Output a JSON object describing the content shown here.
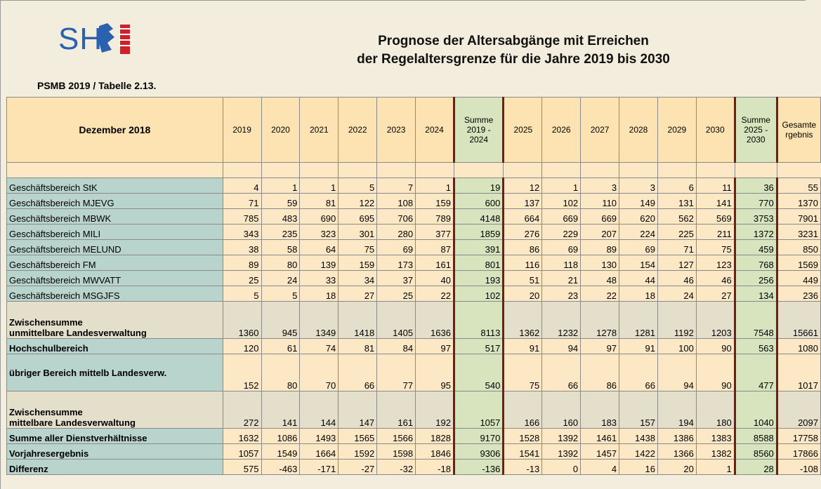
{
  "header": {
    "logo_text": "SH",
    "title_line1": "Prognose der Altersabgänge mit Erreichen",
    "title_line2": "der Regelaltersgrenze für die Jahre 2019 bis 2030",
    "subtitle": "PSMB 2019 / Tabelle 2.13."
  },
  "table": {
    "corner": "Dezember 2018",
    "columns": [
      "2019",
      "2020",
      "2021",
      "2022",
      "2023",
      "2024",
      "Summe\n2019 -\n2024",
      "2025",
      "2026",
      "2027",
      "2028",
      "2029",
      "2030",
      "Summe\n2025 -\n2030",
      "Gesamte\nrgebnis"
    ],
    "rows": [
      {
        "label": "Geschäftsbereich StK",
        "values": [
          4,
          1,
          1,
          5,
          7,
          1,
          19,
          12,
          1,
          3,
          3,
          6,
          11,
          36,
          55
        ]
      },
      {
        "label": "Geschäftsbereich MJEVG",
        "values": [
          71,
          59,
          81,
          122,
          108,
          159,
          600,
          137,
          102,
          110,
          149,
          131,
          141,
          770,
          1370
        ]
      },
      {
        "label": "Geschäftsbereich MBWK",
        "values": [
          785,
          483,
          690,
          695,
          706,
          789,
          4148,
          664,
          669,
          669,
          620,
          562,
          569,
          3753,
          7901
        ]
      },
      {
        "label": "Geschäftsbereich MILI",
        "values": [
          343,
          235,
          323,
          301,
          280,
          377,
          1859,
          276,
          229,
          207,
          224,
          225,
          211,
          1372,
          3231
        ]
      },
      {
        "label": "Geschäftsbereich MELUND",
        "values": [
          38,
          58,
          64,
          75,
          69,
          87,
          391,
          86,
          69,
          89,
          69,
          71,
          75,
          459,
          850
        ]
      },
      {
        "label": "Geschäftsbereich FM",
        "values": [
          89,
          80,
          139,
          159,
          173,
          161,
          801,
          116,
          118,
          130,
          154,
          127,
          123,
          768,
          1569
        ]
      },
      {
        "label": "Geschäftsbereich MWVATT",
        "values": [
          25,
          24,
          33,
          34,
          37,
          40,
          193,
          51,
          21,
          48,
          44,
          46,
          46,
          256,
          449
        ]
      },
      {
        "label": "Geschäftsbereich MSGJFS",
        "values": [
          5,
          5,
          18,
          27,
          25,
          22,
          102,
          20,
          23,
          22,
          18,
          24,
          27,
          134,
          236
        ]
      },
      {
        "label": "Zwischensumme\nunmittelbare Landesverwaltung",
        "values": [
          1360,
          945,
          1349,
          1418,
          1405,
          1636,
          8113,
          1362,
          1232,
          1278,
          1281,
          1192,
          1203,
          7548,
          15661
        ]
      },
      {
        "label": "Hochschulbereich",
        "values": [
          120,
          61,
          74,
          81,
          84,
          97,
          517,
          91,
          94,
          97,
          91,
          100,
          90,
          563,
          1080
        ]
      },
      {
        "label": "übriger Bereich mittelb Landesverw.",
        "values": [
          152,
          80,
          70,
          66,
          77,
          95,
          540,
          75,
          66,
          86,
          66,
          94,
          90,
          477,
          1017
        ]
      },
      {
        "label": "Zwischensumme\nmittelbare Landesverwaltung",
        "values": [
          272,
          141,
          144,
          147,
          161,
          192,
          1057,
          166,
          160,
          183,
          157,
          194,
          180,
          1040,
          2097
        ]
      },
      {
        "label": "Summe aller Dienstverhältnisse",
        "values": [
          1632,
          1086,
          1493,
          1565,
          1566,
          1828,
          9170,
          1528,
          1392,
          1461,
          1438,
          1386,
          1383,
          8588,
          17758
        ]
      },
      {
        "label": "Vorjahresergebnis",
        "values": [
          1057,
          1549,
          1664,
          1592,
          1598,
          1846,
          9306,
          1541,
          1392,
          1457,
          1422,
          1366,
          1382,
          8560,
          17866
        ]
      },
      {
        "label": "Differenz",
        "values": [
          575,
          -463,
          -171,
          -27,
          -32,
          -18,
          -136,
          -13,
          0,
          4,
          16,
          20,
          1,
          28,
          -108
        ]
      }
    ]
  }
}
